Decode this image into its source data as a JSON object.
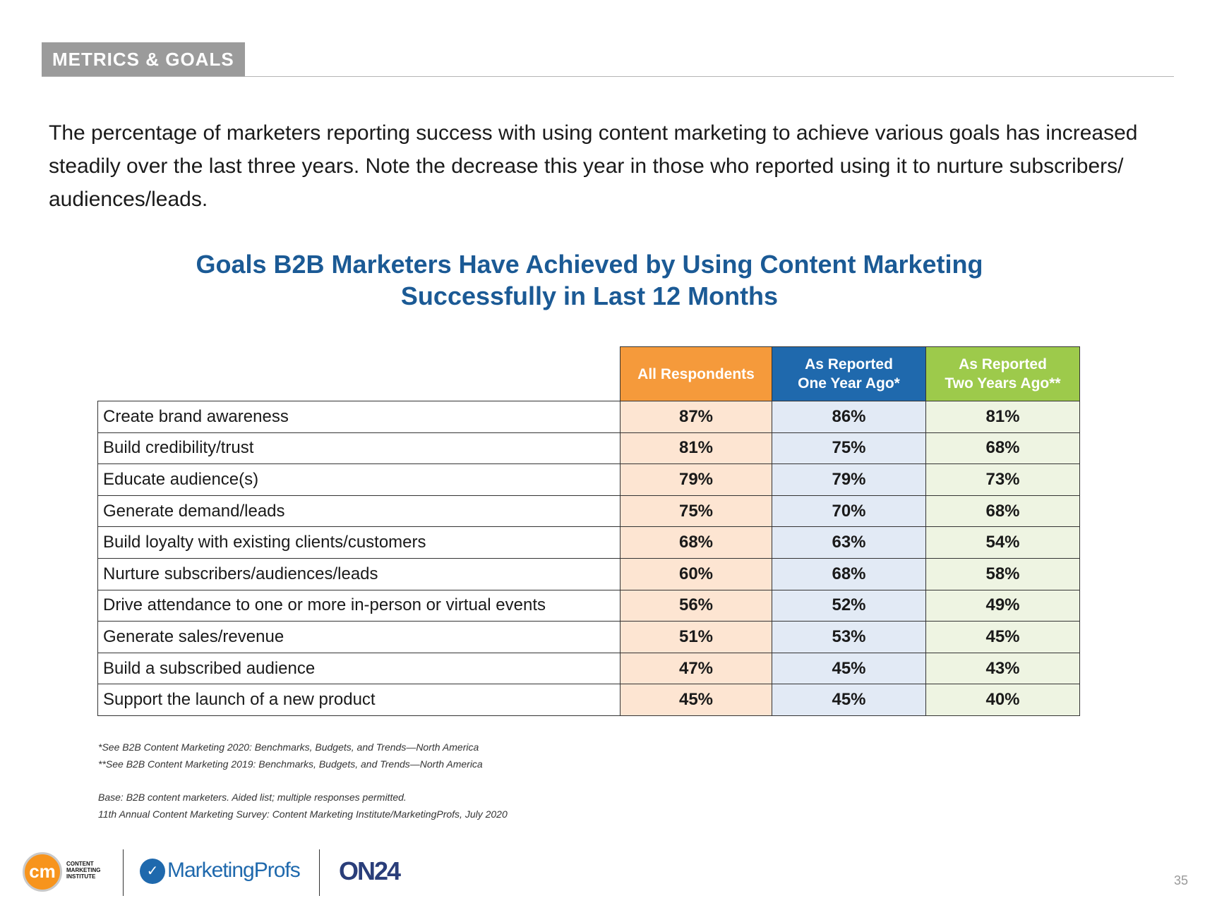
{
  "section_tag": "METRICS & GOALS",
  "intro_text": "The percentage of marketers reporting success with using content marketing to achieve various goals has increased steadily over the last three years. Note the decrease this year in those who reported using it to nurture subscribers/ audiences/leads.",
  "chart_title": {
    "line1": "Goals B2B Marketers Have Achieved by Using Content Marketing",
    "line2": "Successfully in Last 12 Months"
  },
  "chart_data": {
    "type": "table",
    "title": "Goals B2B Marketers Have Achieved by Using Content Marketing Successfully in Last 12 Months",
    "columns": [
      {
        "label": "All Respondents",
        "color": "#f59a3b"
      },
      {
        "label": "As Reported One Year Ago*",
        "color": "#1f69ad"
      },
      {
        "label": "As Reported Two Years Ago**",
        "color": "#9dca4b"
      }
    ],
    "rows": [
      {
        "label": "Create brand awareness",
        "values": [
          "87%",
          "86%",
          "81%"
        ]
      },
      {
        "label": "Build credibility/trust",
        "values": [
          "81%",
          "75%",
          "68%"
        ]
      },
      {
        "label": "Educate audience(s)",
        "values": [
          "79%",
          "79%",
          "73%"
        ]
      },
      {
        "label": "Generate demand/leads",
        "values": [
          "75%",
          "70%",
          "68%"
        ]
      },
      {
        "label": "Build loyalty with existing clients/customers",
        "values": [
          "68%",
          "63%",
          "54%"
        ]
      },
      {
        "label": "Nurture subscribers/audiences/leads",
        "values": [
          "60%",
          "68%",
          "58%"
        ]
      },
      {
        "label": "Drive attendance to one or more in-person or virtual events",
        "values": [
          "56%",
          "52%",
          "49%"
        ]
      },
      {
        "label": "Generate sales/revenue",
        "values": [
          "51%",
          "53%",
          "45%"
        ]
      },
      {
        "label": "Build a subscribed audience",
        "values": [
          "47%",
          "45%",
          "43%"
        ]
      },
      {
        "label": "Support the launch of a new product",
        "values": [
          "45%",
          "45%",
          "40%"
        ]
      }
    ]
  },
  "notes": {
    "note1": "*See B2B Content Marketing 2020: Benchmarks, Budgets, and Trends—North America",
    "note2": "**See B2B Content Marketing 2019: Benchmarks, Budgets, and Trends—North America",
    "base": "Base: B2B content marketers. Aided list; multiple responses permitted.",
    "source": "11th Annual Content Marketing Survey: Content Marketing Institute/MarketingProfs, July 2020"
  },
  "footer": {
    "cmi_mark": "cm",
    "cmi_line1": "CONTENT",
    "cmi_line2": "MARKETING",
    "cmi_line3": "INSTITUTE",
    "mp_name": "MarketingProfs",
    "on24_name": "ON24",
    "page_number": "35"
  }
}
